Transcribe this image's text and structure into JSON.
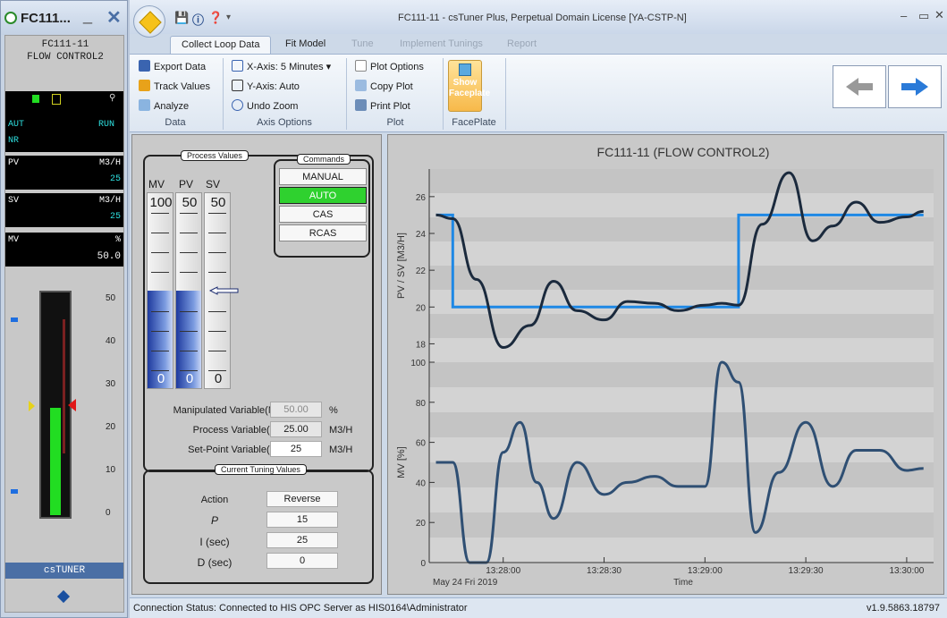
{
  "faceplate_window": {
    "title": "FC111...",
    "tag": "FC111-11",
    "tag_desc": "FLOW CONTROL2",
    "mode": "AUT",
    "status": "RUN",
    "alarm": "NR",
    "pv_label": "PV",
    "pv_unit": "M3/H",
    "pv_value": "25",
    "sv_label": "SV",
    "sv_unit": "M3/H",
    "sv_value": "25",
    "mv_label": "MV",
    "mv_unit": "%",
    "mv_value": "50.0",
    "scale": [
      "50",
      "40",
      "30",
      "20",
      "10",
      "0"
    ],
    "footer": "csTUNER"
  },
  "app": {
    "title": "FC111-11 - csTuner Plus, Perpetual Domain License [YA-CSTP-N]",
    "tabs": [
      {
        "label": "Collect Loop Data"
      },
      {
        "label": "Fit Model"
      },
      {
        "label": "Tune"
      },
      {
        "label": "Implement Tunings"
      },
      {
        "label": "Report"
      }
    ]
  },
  "ribbon": {
    "data": {
      "export": "Export Data",
      "track": "Track Values",
      "analyze": "Analyze",
      "group": "Data"
    },
    "axis": {
      "xaxis": "X-Axis: 5 Minutes ▾",
      "yaxis": "Y-Axis: Auto",
      "undo": "Undo Zoom",
      "group": "Axis Options"
    },
    "plot": {
      "options": "Plot Options",
      "copy": "Copy Plot",
      "print": "Print Plot",
      "group": "Plot"
    },
    "faceplate": {
      "show1": "Show",
      "show2": "Faceplate",
      "group": "FacePlate"
    }
  },
  "process": {
    "box_title": "Process Values",
    "mv": "MV",
    "pv": "PV",
    "sv": "SV",
    "top": [
      "100",
      "50",
      "50"
    ],
    "bottom": [
      "0",
      "0",
      "0"
    ],
    "mv_level": 0.5,
    "pv_level": 0.5,
    "sv_level": 0.5
  },
  "commands": {
    "title": "Commands",
    "items": [
      "MANUAL",
      "AUTO",
      "CAS",
      "RCAS"
    ],
    "active": "AUTO"
  },
  "variables": {
    "mv_label": "Manipulated Variable(MV)",
    "mv_value": "50.00",
    "mv_unit": "%",
    "pv_label": "Process Variable(PV)",
    "pv_value": "25.00",
    "pv_unit": "M3/H",
    "sv_label": "Set-Point Variable(SV)",
    "sv_value": "25",
    "sv_unit": "M3/H"
  },
  "tuning": {
    "title": "Current Tuning Values",
    "action_label": "Action",
    "action_value": "Reverse",
    "p_label": "P",
    "p_value": "15",
    "i_label": "I (sec)",
    "i_value": "25",
    "d_label": "D (sec)",
    "d_value": "0"
  },
  "status": {
    "text": "Connection Status: Connected to HIS OPC Server as HIS0164\\Administrator",
    "version": "v1.9.5863.18797"
  },
  "chart_data": [
    {
      "type": "line",
      "title": "FC111-11 (FLOW CONTROL2)",
      "ylabel": "PV / SV [M3/H]",
      "ylim": [
        17,
        27.5
      ],
      "yticks": [
        "18",
        "20",
        "22",
        "24",
        "26"
      ],
      "x": [
        "13:27:40",
        "13:27:45",
        "13:27:52",
        "13:28:00",
        "13:28:08",
        "13:28:15",
        "13:28:22",
        "13:28:30",
        "13:28:37",
        "13:28:45",
        "13:28:52",
        "13:29:00",
        "13:29:05",
        "13:29:10",
        "13:29:17",
        "13:29:25",
        "13:29:32",
        "13:29:38",
        "13:29:45",
        "13:29:52",
        "13:30:00",
        "13:30:05"
      ],
      "series": [
        {
          "color": "#1e88e5",
          "values": [
            25,
            20,
            20,
            20,
            20,
            20,
            20,
            20,
            20,
            20,
            20,
            20,
            20,
            25,
            25,
            25,
            25,
            25,
            25,
            25,
            25,
            25
          ]
        },
        {
          "color": "#1b2a3d",
          "values": [
            25,
            24.8,
            21.5,
            17.8,
            19,
            21.4,
            19.8,
            19.3,
            20.3,
            20.2,
            19.8,
            20.1,
            20.2,
            20.1,
            24.5,
            27.3,
            23.6,
            24.4,
            25.7,
            24.6,
            24.9,
            25.2
          ]
        }
      ]
    },
    {
      "type": "line",
      "ylabel": "MV [%]",
      "xlabel": "Time",
      "date": "May 24 Fri 2019",
      "ylim": [
        0,
        100
      ],
      "yticks": [
        "0",
        "20",
        "40",
        "60",
        "80",
        "100"
      ],
      "xticks": [
        "13:28:00",
        "13:28:30",
        "13:29:00",
        "13:29:30",
        "13:30:00"
      ],
      "x": [
        "13:27:40",
        "13:27:45",
        "13:27:50",
        "13:27:55",
        "13:28:00",
        "13:28:05",
        "13:28:10",
        "13:28:15",
        "13:28:22",
        "13:28:30",
        "13:28:37",
        "13:28:45",
        "13:28:52",
        "13:29:00",
        "13:29:05",
        "13:29:10",
        "13:29:15",
        "13:29:22",
        "13:29:30",
        "13:29:38",
        "13:29:45",
        "13:29:52",
        "13:30:00",
        "13:30:05"
      ],
      "series": [
        {
          "color": "#2f4f73",
          "values": [
            50,
            50,
            0,
            0,
            55,
            70,
            40,
            22,
            50,
            34,
            40,
            43,
            38,
            38,
            100,
            90,
            15,
            45,
            70,
            38,
            56,
            56,
            46,
            47
          ]
        }
      ]
    }
  ]
}
